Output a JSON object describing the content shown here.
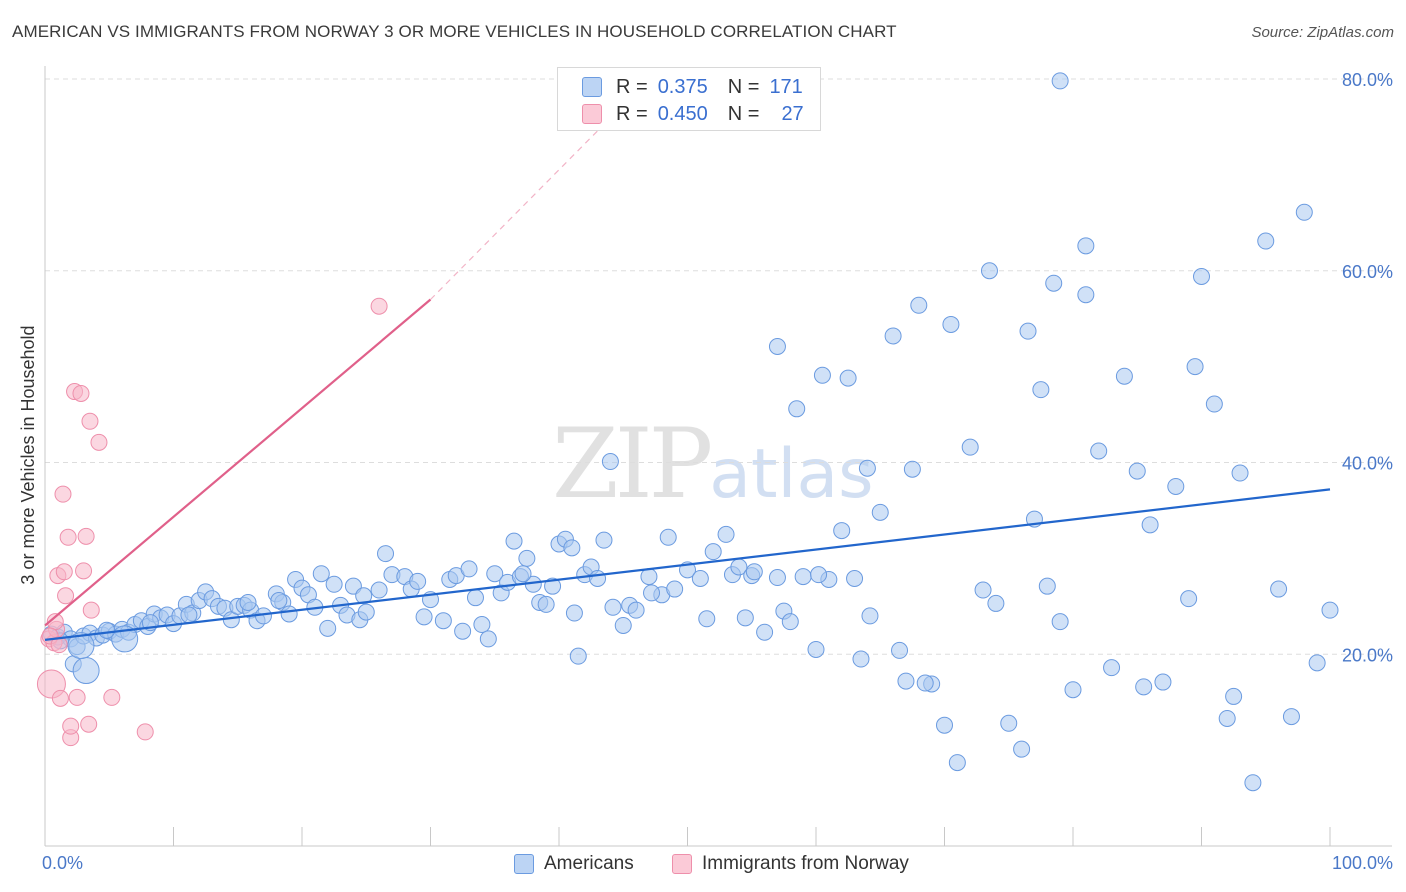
{
  "header": {
    "title": "AMERICAN VS IMMIGRANTS FROM NORWAY 3 OR MORE VEHICLES IN HOUSEHOLD CORRELATION CHART",
    "source": "Source: ZipAtlas.com"
  },
  "watermark": {
    "zip": "ZIP",
    "atlas": "atlas"
  },
  "legend": {
    "rows": [
      {
        "r_label": "R =",
        "r_value": "0.375",
        "n_label": "N =",
        "n_value": "171"
      },
      {
        "r_label": "R =",
        "r_value": "0.450",
        "n_label": "N =",
        "n_value": "27"
      }
    ],
    "bottom": [
      "Americans",
      "Immigrants from Norway"
    ]
  },
  "colors": {
    "american_fill": "#aac8f0",
    "american_stroke": "#6b9be0",
    "american_line": "#2266cc",
    "norway_fill": "#f7b6c8",
    "norway_stroke": "#ee8fab",
    "norway_line": "#e0608a",
    "tick_label": "#4a78c8",
    "grid": "#dddddd"
  },
  "chart_data": {
    "type": "scatter",
    "title": "AMERICAN VS IMMIGRANTS FROM NORWAY 3 OR MORE VEHICLES IN HOUSEHOLD CORRELATION CHART",
    "xlabel": "",
    "ylabel": "3 or more Vehicles in Household",
    "xlim": [
      0,
      100
    ],
    "ylim": [
      0,
      80
    ],
    "x_tick_labels": [
      "0.0%",
      "100.0%"
    ],
    "y_ticks": [
      20,
      40,
      60,
      80
    ],
    "y_tick_labels": [
      "20.0%",
      "40.0%",
      "60.0%",
      "80.0%"
    ],
    "grid": true,
    "series": [
      {
        "name": "Americans",
        "trend": {
          "x": [
            0,
            100
          ],
          "y": [
            21.5,
            37.2
          ]
        },
        "points": [
          [
            0.5,
            22.1
          ],
          [
            1,
            21.8
          ],
          [
            1.5,
            22.3
          ],
          [
            2,
            21.6
          ],
          [
            2.5,
            20.8
          ],
          [
            3,
            21.9
          ],
          [
            3.5,
            22.2
          ],
          [
            4,
            21.7
          ],
          [
            4.5,
            22.0
          ],
          [
            5,
            22.4
          ],
          [
            5.5,
            22.1
          ],
          [
            6,
            22.6
          ],
          [
            6.5,
            22.3
          ],
          [
            7,
            23.1
          ],
          [
            7.5,
            23.5
          ],
          [
            8,
            22.9
          ],
          [
            8.5,
            24.2
          ],
          [
            9,
            23.8
          ],
          [
            9.5,
            24.1
          ],
          [
            10,
            23.2
          ],
          [
            10.5,
            24.0
          ],
          [
            11,
            25.2
          ],
          [
            11.5,
            24.3
          ],
          [
            12,
            25.6
          ],
          [
            12.5,
            26.5
          ],
          [
            13,
            25.8
          ],
          [
            13.5,
            25.0
          ],
          [
            14,
            24.8
          ],
          [
            14.5,
            23.6
          ],
          [
            15,
            25.0
          ],
          [
            15.5,
            25.1
          ],
          [
            16,
            24.6
          ],
          [
            16.5,
            23.5
          ],
          [
            17,
            24.0
          ],
          [
            18,
            26.3
          ],
          [
            18.5,
            25.4
          ],
          [
            19,
            24.2
          ],
          [
            19.5,
            27.8
          ],
          [
            20,
            26.9
          ],
          [
            20.5,
            26.2
          ],
          [
            21,
            24.9
          ],
          [
            21.5,
            28.4
          ],
          [
            22,
            22.7
          ],
          [
            23,
            25.1
          ],
          [
            23.5,
            24.1
          ],
          [
            24,
            27.1
          ],
          [
            24.5,
            23.6
          ],
          [
            25,
            24.4
          ],
          [
            26,
            26.7
          ],
          [
            26.5,
            30.5
          ],
          [
            27,
            28.3
          ],
          [
            28,
            28.1
          ],
          [
            28.5,
            26.8
          ],
          [
            29,
            27.6
          ],
          [
            30,
            25.7
          ],
          [
            31,
            23.5
          ],
          [
            31.5,
            27.8
          ],
          [
            32,
            28.2
          ],
          [
            32.5,
            22.4
          ],
          [
            33,
            28.9
          ],
          [
            34,
            23.1
          ],
          [
            34.5,
            21.6
          ],
          [
            35,
            28.4
          ],
          [
            35.5,
            26.4
          ],
          [
            36,
            27.5
          ],
          [
            36.5,
            31.8
          ],
          [
            37,
            28.1
          ],
          [
            37.5,
            30.0
          ],
          [
            38,
            27.3
          ],
          [
            38.5,
            25.4
          ],
          [
            39,
            25.2
          ],
          [
            39.5,
            27.1
          ],
          [
            40,
            31.5
          ],
          [
            40.5,
            32.0
          ],
          [
            41,
            31.1
          ],
          [
            41.5,
            19.8
          ],
          [
            42,
            28.3
          ],
          [
            42.5,
            29.1
          ],
          [
            43,
            27.9
          ],
          [
            43.5,
            31.9
          ],
          [
            44,
            40.1
          ],
          [
            45,
            23.0
          ],
          [
            45.5,
            25.1
          ],
          [
            46,
            24.6
          ],
          [
            47,
            28.1
          ],
          [
            48,
            26.2
          ],
          [
            48.5,
            32.2
          ],
          [
            49,
            26.8
          ],
          [
            50,
            28.8
          ],
          [
            51,
            27.9
          ],
          [
            52,
            30.7
          ],
          [
            53,
            32.5
          ],
          [
            53.5,
            28.3
          ],
          [
            54,
            29.1
          ],
          [
            54.5,
            23.8
          ],
          [
            55,
            28.2
          ],
          [
            56,
            22.3
          ],
          [
            57,
            28.0
          ],
          [
            57.5,
            24.5
          ],
          [
            58,
            23.4
          ],
          [
            59,
            28.1
          ],
          [
            60,
            20.5
          ],
          [
            61,
            27.8
          ],
          [
            62,
            32.9
          ],
          [
            63,
            27.9
          ],
          [
            64,
            39.4
          ],
          [
            65,
            34.8
          ],
          [
            66,
            53.2
          ],
          [
            67,
            17.2
          ],
          [
            68,
            56.4
          ],
          [
            69,
            16.9
          ],
          [
            70,
            12.6
          ],
          [
            71,
            8.7
          ],
          [
            72,
            41.6
          ],
          [
            73,
            26.7
          ],
          [
            74,
            25.3
          ],
          [
            75,
            12.8
          ],
          [
            76,
            10.1
          ],
          [
            77,
            34.1
          ],
          [
            78,
            27.1
          ],
          [
            79,
            23.4
          ],
          [
            80,
            16.3
          ],
          [
            81,
            57.5
          ],
          [
            82,
            41.2
          ],
          [
            83,
            18.6
          ],
          [
            84,
            49.0
          ],
          [
            85,
            39.1
          ],
          [
            86,
            33.5
          ],
          [
            87,
            17.1
          ],
          [
            88,
            37.5
          ],
          [
            89,
            25.8
          ],
          [
            90,
            59.4
          ],
          [
            91,
            46.1
          ],
          [
            92,
            13.3
          ],
          [
            93,
            38.9
          ],
          [
            94,
            6.6
          ],
          [
            95,
            63.1
          ],
          [
            96,
            26.8
          ],
          [
            97,
            13.5
          ],
          [
            98,
            66.1
          ],
          [
            99,
            19.1
          ],
          [
            100,
            24.6
          ],
          [
            58.5,
            45.6
          ],
          [
            60.5,
            49.1
          ],
          [
            57,
            52.1
          ],
          [
            62.5,
            48.8
          ],
          [
            67.5,
            39.3
          ],
          [
            70.5,
            54.4
          ],
          [
            73.5,
            60.0
          ],
          [
            76.5,
            53.7
          ],
          [
            79,
            79.8
          ],
          [
            81,
            62.6
          ],
          [
            78.5,
            58.7
          ],
          [
            77.5,
            47.6
          ],
          [
            89.5,
            50.0
          ],
          [
            92.5,
            15.6
          ],
          [
            85.5,
            16.6
          ],
          [
            63.5,
            19.5
          ],
          [
            66.5,
            20.4
          ],
          [
            68.5,
            17.0
          ],
          [
            1.2,
            21.4
          ],
          [
            2.2,
            19.0
          ],
          [
            3.2,
            18.3
          ],
          [
            6.2,
            21.6
          ],
          [
            2.8,
            20.9
          ],
          [
            4.8,
            22.5
          ],
          [
            8.2,
            23.3
          ],
          [
            11.2,
            24.1
          ],
          [
            15.8,
            25.4
          ],
          [
            18.2,
            25.6
          ],
          [
            22.5,
            27.3
          ],
          [
            24.8,
            26.1
          ],
          [
            29.5,
            23.9
          ],
          [
            33.5,
            25.9
          ],
          [
            37.2,
            28.4
          ],
          [
            41.2,
            24.3
          ],
          [
            44.2,
            24.9
          ],
          [
            47.2,
            26.4
          ],
          [
            51.5,
            23.7
          ],
          [
            55.2,
            28.6
          ],
          [
            60.2,
            28.3
          ],
          [
            64.2,
            24.0
          ]
        ]
      },
      {
        "name": "Immigrants from Norway",
        "trend": {
          "x": [
            0,
            30
          ],
          "y": [
            23.0,
            57.0
          ]
        },
        "trend_extended": {
          "x": [
            30,
            47
          ],
          "y": [
            57.0,
            80.0
          ]
        },
        "points": [
          [
            0.3,
            21.6
          ],
          [
            0.5,
            16.9
          ],
          [
            0.7,
            21.2
          ],
          [
            0.9,
            22.6
          ],
          [
            1.0,
            28.2
          ],
          [
            1.2,
            15.4
          ],
          [
            1.4,
            36.7
          ],
          [
            1.6,
            26.1
          ],
          [
            1.8,
            32.2
          ],
          [
            2.0,
            11.3
          ],
          [
            2.0,
            12.5
          ],
          [
            2.3,
            47.4
          ],
          [
            2.5,
            15.5
          ],
          [
            2.8,
            47.2
          ],
          [
            3.0,
            28.7
          ],
          [
            3.2,
            32.3
          ],
          [
            3.4,
            12.7
          ],
          [
            3.5,
            44.3
          ],
          [
            3.6,
            24.6
          ],
          [
            4.2,
            42.1
          ],
          [
            5.2,
            15.5
          ],
          [
            7.8,
            11.9
          ],
          [
            26.0,
            56.3
          ],
          [
            0.8,
            23.4
          ],
          [
            1.5,
            28.6
          ],
          [
            0.4,
            21.9
          ],
          [
            1.1,
            21.0
          ]
        ]
      }
    ]
  }
}
